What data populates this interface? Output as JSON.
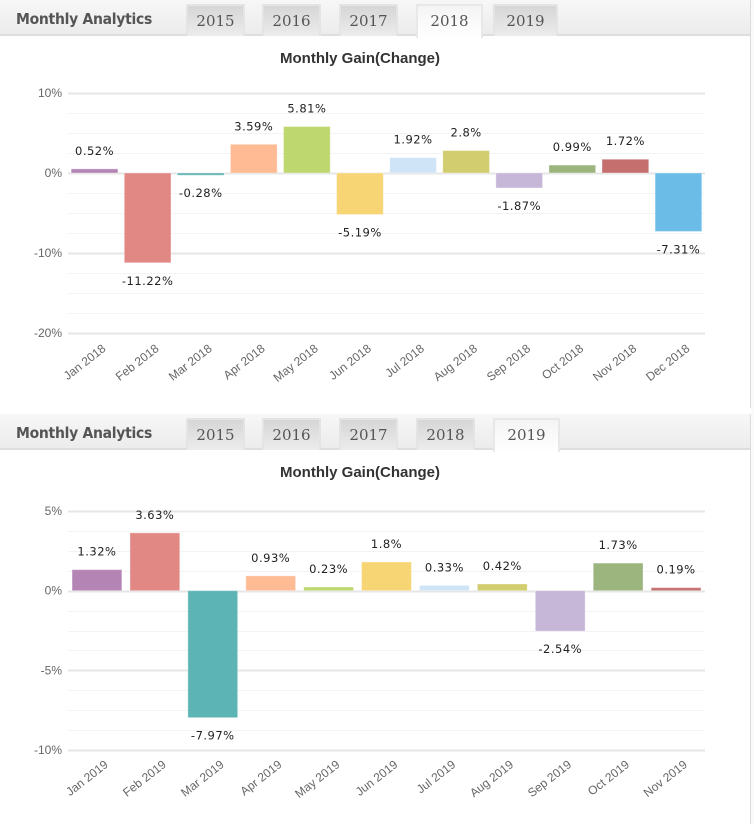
{
  "panels": [
    {
      "header": {
        "title": "Monthly Analytics",
        "tabs": [
          "2015",
          "2016",
          "2017",
          "2018",
          "2019"
        ],
        "active_tab": "2018"
      },
      "chart_title": "Monthly Gain(Change)"
    },
    {
      "header": {
        "title": "Monthly Analytics",
        "tabs": [
          "2015",
          "2016",
          "2017",
          "2018",
          "2019"
        ],
        "active_tab": "2019"
      },
      "chart_title": "Monthly Gain(Change)"
    }
  ],
  "chart_data": [
    {
      "type": "bar",
      "title": "Monthly Gain(Change)",
      "xlabel": "",
      "ylabel": "",
      "ylim": [
        -20,
        10
      ],
      "yticks": [
        10,
        0,
        -10,
        -20
      ],
      "ytick_labels": [
        "10%",
        "0%",
        "-10%",
        "-20%"
      ],
      "grid": true,
      "categories": [
        "Jan 2018",
        "Feb 2018",
        "Mar 2018",
        "Apr 2018",
        "May 2018",
        "Jun 2018",
        "Jul 2018",
        "Aug 2018",
        "Sep 2018",
        "Oct 2018",
        "Nov 2018",
        "Dec 2018"
      ],
      "values": [
        0.52,
        -11.22,
        -0.28,
        3.59,
        5.81,
        -5.19,
        1.92,
        2.8,
        -1.87,
        0.99,
        1.72,
        -7.31
      ],
      "data_labels": [
        "0.52%",
        "-11.22%",
        "-0.28%",
        "3.59%",
        "5.81%",
        "-5.19%",
        "1.92%",
        "2.8%",
        "-1.87%",
        "0.99%",
        "1.72%",
        "-7.31%"
      ],
      "colors": [
        "#b485b4",
        "#e28884",
        "#5db4b4",
        "#ffbb94",
        "#bed76f",
        "#f7d575",
        "#cfe5f7",
        "#d2cd6e",
        "#c6b6d8",
        "#9cb57f",
        "#c66f6f",
        "#6bbde8"
      ]
    },
    {
      "type": "bar",
      "title": "Monthly Gain(Change)",
      "xlabel": "",
      "ylabel": "",
      "ylim": [
        -10,
        5
      ],
      "yticks": [
        5,
        0,
        -5,
        -10
      ],
      "ytick_labels": [
        "5%",
        "0%",
        "-5%",
        "-10%"
      ],
      "grid": true,
      "categories": [
        "Jan 2019",
        "Feb 2019",
        "Mar 2019",
        "Apr 2019",
        "May 2019",
        "Jun 2019",
        "Jul 2019",
        "Aug 2019",
        "Sep 2019",
        "Oct 2019",
        "Nov 2019"
      ],
      "values": [
        1.32,
        3.63,
        -7.97,
        0.93,
        0.23,
        1.8,
        0.33,
        0.42,
        -2.54,
        1.73,
        0.19
      ],
      "data_labels": [
        "1.32%",
        "3.63%",
        "-7.97%",
        "0.93%",
        "0.23%",
        "1.8%",
        "0.33%",
        "0.42%",
        "-2.54%",
        "1.73%",
        "0.19%"
      ],
      "colors": [
        "#b485b4",
        "#e28884",
        "#5db4b4",
        "#ffbb94",
        "#bed76f",
        "#f7d575",
        "#cfe5f7",
        "#d2cd6e",
        "#c6b6d8",
        "#9cb57f",
        "#c66f6f"
      ]
    }
  ]
}
